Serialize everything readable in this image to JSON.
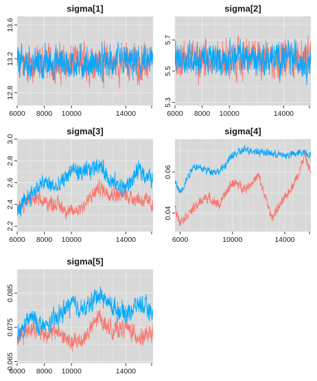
{
  "colors": {
    "panel_bg": "#d9d9d9",
    "grid": "#ebebeb",
    "chain_1": "#f8766d",
    "chain_2": "#00a9ff"
  },
  "chart_data": [
    {
      "type": "line",
      "title": "sigma[1]",
      "xlabel": "",
      "ylabel": "",
      "xlim": [
        6000,
        16000
      ],
      "ylim": [
        12.65,
        13.7
      ],
      "x_ticks": [
        6000,
        8000,
        10000,
        14000
      ],
      "x_tick_labels": [
        "6000",
        "8000",
        "10000",
        "14000"
      ],
      "y_ticks": [
        12.8,
        13.2,
        13.6
      ],
      "y_tick_labels": [
        "12.8",
        "13.2",
        "13.6"
      ],
      "grid": true,
      "series": [
        {
          "color": "#f8766d",
          "x": [
            6000,
            7000,
            8000,
            9000,
            10000,
            11000,
            12000,
            13000,
            14000,
            15000,
            16000
          ],
          "values": [
            13.15,
            13.14,
            13.16,
            13.15,
            13.13,
            13.16,
            13.15,
            13.14,
            13.16,
            13.15,
            13.14
          ],
          "noise": 0.18
        },
        {
          "color": "#00a9ff",
          "x": [
            6000,
            7000,
            8000,
            9000,
            10000,
            11000,
            12000,
            13000,
            14000,
            15000,
            16000
          ],
          "values": [
            13.16,
            13.15,
            13.14,
            13.16,
            13.15,
            13.15,
            13.14,
            13.16,
            13.15,
            13.15,
            13.16
          ],
          "noise": 0.16
        }
      ]
    },
    {
      "type": "line",
      "title": "sigma[2]",
      "xlabel": "",
      "ylabel": "",
      "xlim": [
        6000,
        16000
      ],
      "ylim": [
        5.28,
        5.85
      ],
      "x_ticks": [
        6000,
        8000,
        10000,
        14000
      ],
      "x_tick_labels": [
        "6000",
        "8000",
        "10000",
        "14000"
      ],
      "y_ticks": [
        5.3,
        5.5,
        5.7
      ],
      "y_tick_labels": [
        "5.3",
        "5.5",
        "5.7"
      ],
      "grid": true,
      "series": [
        {
          "color": "#f8766d",
          "x": [
            6000,
            7000,
            8000,
            9000,
            10000,
            11000,
            12000,
            13000,
            14000,
            15000,
            16000
          ],
          "values": [
            5.58,
            5.57,
            5.59,
            5.58,
            5.57,
            5.58,
            5.59,
            5.58,
            5.57,
            5.58,
            5.58
          ],
          "noise": 0.1
        },
        {
          "color": "#00a9ff",
          "x": [
            6000,
            7000,
            8000,
            9000,
            10000,
            11000,
            12000,
            13000,
            14000,
            15000,
            16000
          ],
          "values": [
            5.58,
            5.59,
            5.58,
            5.57,
            5.58,
            5.59,
            5.58,
            5.58,
            5.59,
            5.58,
            5.57
          ],
          "noise": 0.09
        }
      ]
    },
    {
      "type": "line",
      "title": "sigma[3]",
      "xlabel": "",
      "ylabel": "",
      "xlim": [
        6000,
        16000
      ],
      "ylim": [
        2.15,
        3.0
      ],
      "x_ticks": [
        6000,
        8000,
        10000,
        14000
      ],
      "x_tick_labels": [
        "6000",
        "8000",
        "10000",
        "14000"
      ],
      "y_ticks": [
        2.2,
        2.4,
        2.6,
        2.8,
        3.0
      ],
      "y_tick_labels": [
        "2.2",
        "2.4",
        "2.6",
        "2.8",
        "3.0"
      ],
      "grid": true,
      "series": [
        {
          "color": "#f8766d",
          "x": [
            6000,
            7000,
            8000,
            9000,
            10000,
            11000,
            12000,
            13000,
            14000,
            15000,
            16000
          ],
          "values": [
            2.35,
            2.45,
            2.42,
            2.4,
            2.32,
            2.4,
            2.55,
            2.5,
            2.48,
            2.45,
            2.4
          ],
          "noise": 0.06
        },
        {
          "color": "#00a9ff",
          "x": [
            6000,
            7000,
            8000,
            9000,
            10000,
            11000,
            12000,
            13000,
            14000,
            15000,
            16000
          ],
          "values": [
            2.32,
            2.5,
            2.6,
            2.55,
            2.72,
            2.68,
            2.78,
            2.6,
            2.55,
            2.72,
            2.62
          ],
          "noise": 0.07
        }
      ]
    },
    {
      "type": "line",
      "title": "sigma[4]",
      "xlabel": "",
      "ylabel": "",
      "xlim": [
        5600,
        16000
      ],
      "ylim": [
        0.031,
        0.076
      ],
      "x_ticks": [
        6000,
        10000,
        14000
      ],
      "x_tick_labels": [
        "6000",
        "10000",
        "14000"
      ],
      "y_ticks": [
        0.04,
        0.06
      ],
      "y_tick_labels": [
        "0.04",
        "0.06"
      ],
      "grid": true,
      "series": [
        {
          "color": "#f8766d",
          "x": [
            5600,
            6000,
            7000,
            8000,
            9000,
            10000,
            11000,
            12000,
            13000,
            14000,
            15000,
            15500,
            16000
          ],
          "values": [
            0.042,
            0.036,
            0.042,
            0.048,
            0.044,
            0.055,
            0.052,
            0.058,
            0.038,
            0.047,
            0.058,
            0.068,
            0.06
          ],
          "noise": 0.002
        },
        {
          "color": "#00a9ff",
          "x": [
            5600,
            6000,
            7000,
            8000,
            9000,
            10000,
            11000,
            12000,
            13000,
            14000,
            15000,
            15500,
            16000
          ],
          "values": [
            0.055,
            0.05,
            0.063,
            0.061,
            0.06,
            0.068,
            0.071,
            0.07,
            0.069,
            0.068,
            0.069,
            0.07,
            0.068
          ],
          "noise": 0.0016
        }
      ]
    },
    {
      "type": "line",
      "title": "sigma[5]",
      "xlabel": "",
      "ylabel": "",
      "xlim": [
        6000,
        16000
      ],
      "ylim": [
        0.0645,
        0.092
      ],
      "x_ticks": [
        6000,
        8000,
        10000,
        14000
      ],
      "x_tick_labels": [
        "6000",
        "8000",
        "10000",
        "14000"
      ],
      "y_ticks": [
        0.065,
        0.075,
        0.085
      ],
      "y_tick_labels": [
        "0.065",
        "0.075",
        "0.085"
      ],
      "grid": true,
      "series": [
        {
          "color": "#f8766d",
          "x": [
            6000,
            7000,
            8000,
            9000,
            10000,
            11000,
            12000,
            13000,
            14000,
            15000,
            16000
          ],
          "values": [
            0.072,
            0.075,
            0.073,
            0.074,
            0.07,
            0.072,
            0.078,
            0.074,
            0.075,
            0.072,
            0.073
          ],
          "noise": 0.0022
        },
        {
          "color": "#00a9ff",
          "x": [
            6000,
            7000,
            8000,
            9000,
            10000,
            11000,
            12000,
            13000,
            14000,
            15000,
            16000
          ],
          "values": [
            0.072,
            0.078,
            0.075,
            0.078,
            0.082,
            0.08,
            0.085,
            0.081,
            0.079,
            0.082,
            0.079
          ],
          "noise": 0.0024
        }
      ]
    }
  ]
}
